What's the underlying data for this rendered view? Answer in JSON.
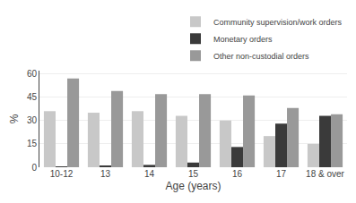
{
  "chart_data": {
    "type": "bar",
    "categories": [
      "10-12",
      "13",
      "14",
      "15",
      "16",
      "17",
      "18 & over"
    ],
    "series": [
      {
        "name": "Community supervision/work orders",
        "color": "#c8c8c8",
        "values": [
          36,
          35,
          36,
          33,
          30,
          20,
          15
        ]
      },
      {
        "name": "Monetary orders",
        "color": "#3a3a3a",
        "values": [
          0.5,
          1.0,
          1.5,
          3.0,
          13,
          28,
          33
        ]
      },
      {
        "name": "Other non-custodial orders",
        "color": "#999999",
        "values": [
          57,
          49,
          47,
          47,
          46,
          38,
          34
        ]
      }
    ],
    "xlabel": "Age (years)",
    "ylabel": "%",
    "ylim": [
      0,
      62
    ],
    "yticks": [
      0,
      15,
      30,
      45,
      60
    ],
    "grid": true,
    "legend": "upper right"
  }
}
